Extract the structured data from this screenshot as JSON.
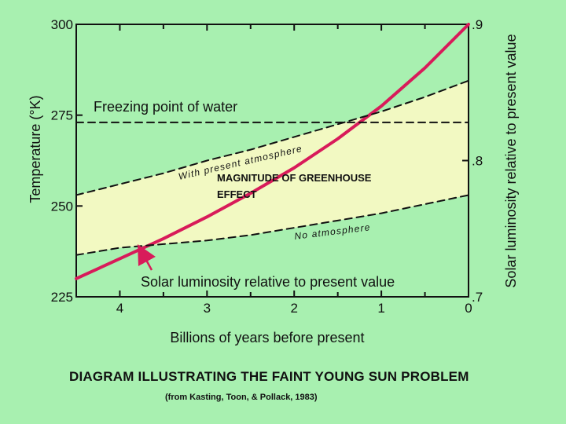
{
  "chart_data": {
    "type": "line",
    "xlabel": "Billions of years before present",
    "ylabel_left": "Temperature (°K)",
    "ylabel_right": "Solar luminosity relative to present value",
    "x_ticks": [
      "4",
      "3",
      "2",
      "1",
      "0"
    ],
    "xlim": [
      4.5,
      0
    ],
    "y_left_ticks": [
      "300",
      "275",
      "250",
      "225"
    ],
    "ylim_left": [
      225,
      300
    ],
    "y_right_ticks": [
      ".9",
      ".8",
      ".7"
    ],
    "ylim_right": [
      0.7,
      0.9
    ],
    "grid": false,
    "series": [
      {
        "name": "Solar luminosity relative to present value",
        "style": "solid",
        "color": "#d81b5a",
        "x": [
          4.5,
          4.0,
          3.5,
          3.0,
          2.5,
          2.0,
          1.5,
          1.0,
          0.5,
          0.0
        ],
        "y": [
          230,
          235.5,
          241,
          247,
          253.5,
          260.5,
          268.5,
          277.5,
          288,
          300
        ]
      },
      {
        "name": "With present atmosphere",
        "style": "dashed",
        "color": "#111111",
        "x": [
          4.5,
          4.0,
          3.5,
          3.0,
          2.5,
          2.0,
          1.5,
          1.0,
          0.5,
          0.0
        ],
        "y": [
          253,
          256,
          259,
          262.5,
          265.5,
          269,
          272.5,
          276,
          280,
          284.5
        ]
      },
      {
        "name": "No atmosphere",
        "style": "dashed",
        "color": "#111111",
        "x": [
          4.5,
          4.0,
          3.5,
          3.0,
          2.5,
          2.0,
          1.5,
          1.0,
          0.5,
          0.0
        ],
        "y": [
          236.5,
          238.5,
          239.5,
          240.5,
          242,
          244,
          246,
          248,
          250.5,
          253
        ]
      },
      {
        "name": "Freezing point of water",
        "style": "dashed",
        "color": "#111111",
        "x": [
          4.5,
          0.0
        ],
        "y": [
          273,
          273
        ]
      }
    ],
    "annotations": {
      "freezing": "Freezing point of water",
      "with_present": "With present atmosphere",
      "no_atm": "No atmosphere",
      "greenhouse_line1": "MAGNITUDE OF GREENHOUSE",
      "greenhouse_line2": "EFFECT",
      "solar": "Solar luminosity relative to present value"
    },
    "fill_color": "#f2f9c2",
    "curve_color": "#d81b5a"
  },
  "caption": {
    "title": "DIAGRAM ILLUSTRATING THE FAINT YOUNG SUN PROBLEM",
    "source": "(from Kasting, Toon, & Pollack, 1983)"
  }
}
